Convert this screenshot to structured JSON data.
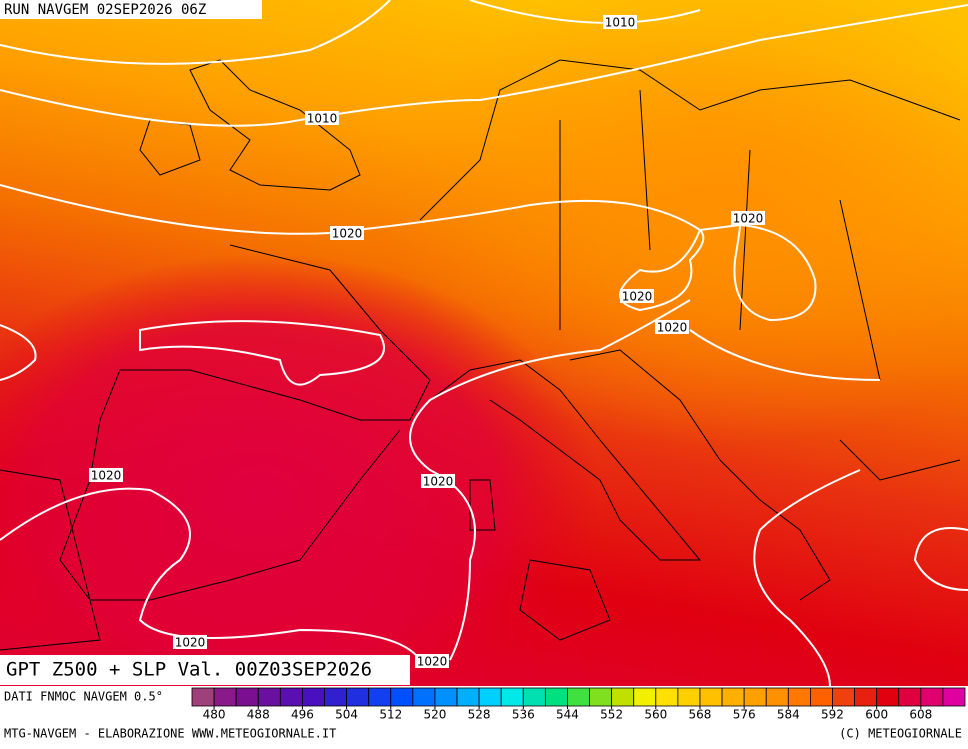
{
  "header": {
    "title": "RUN NAVGEM 02SEP2026 06Z"
  },
  "map": {
    "field_label": "GPT Z500 + SLP Val. 00Z03SEP2026",
    "contour_labels": [
      "1010",
      "1010",
      "1020",
      "1020",
      "1020",
      "1020",
      "1020",
      "1020",
      "1020",
      "1020"
    ]
  },
  "colorbar": {
    "source": "DATI FNMOC NAVGEM 0.5°",
    "range": [
      476,
      616
    ],
    "ticks": [
      480,
      488,
      496,
      504,
      512,
      520,
      528,
      536,
      544,
      552,
      560,
      568,
      576,
      584,
      592,
      600,
      608
    ],
    "colors": [
      "#a0407a",
      "#8a1a8a",
      "#7a1090",
      "#6a10a0",
      "#5a10b0",
      "#4a10c0",
      "#3020d0",
      "#2030e0",
      "#1040f0",
      "#0050ff",
      "#0070ff",
      "#0090ff",
      "#00b0ff",
      "#00d0ff",
      "#00e8e8",
      "#00e0b0",
      "#00e080",
      "#40e040",
      "#80e020",
      "#c0e000",
      "#f0f000",
      "#ffe000",
      "#ffd000",
      "#ffc000",
      "#ffb000",
      "#ffa000",
      "#ff9000",
      "#ff7800",
      "#ff6000",
      "#f04010",
      "#e82010",
      "#e00010",
      "#e00040",
      "#e00070",
      "#e000a0"
    ]
  },
  "footer": {
    "left": "MTG-NAVGEM - ELABORAZIONE WWW.METEOGIORNALE.IT",
    "right": "(C) METEOGIORNALE"
  }
}
